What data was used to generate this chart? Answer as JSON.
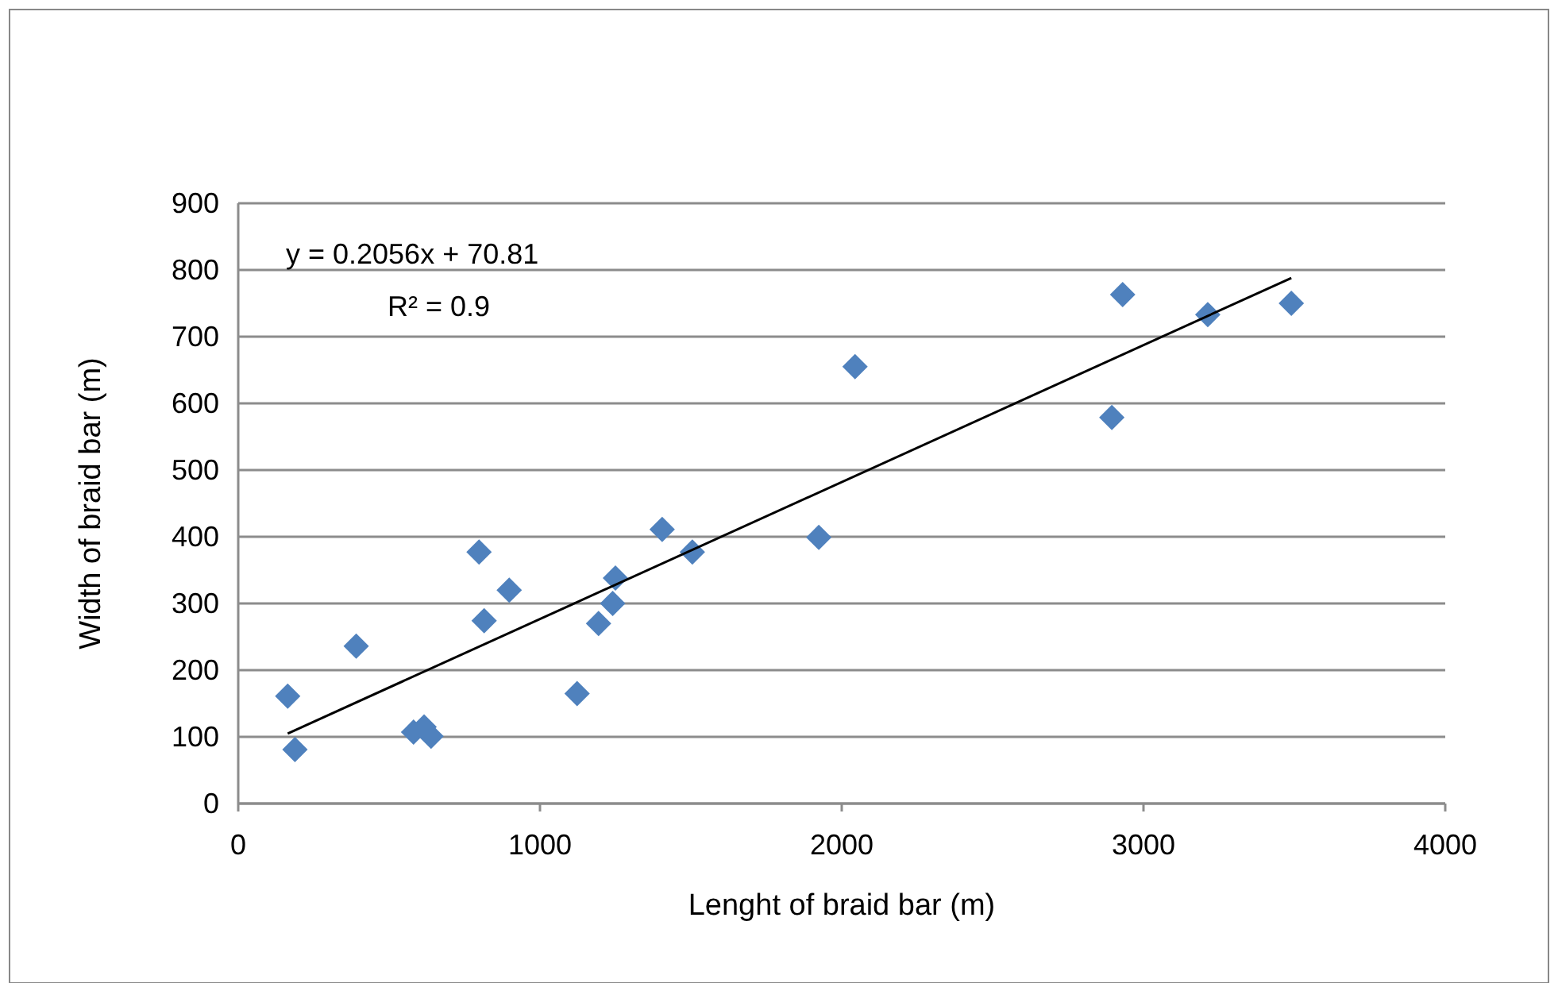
{
  "chart_data": {
    "type": "scatter",
    "xlabel": "Lenght of braid bar (m)",
    "ylabel": "Width of braid bar (m)",
    "xlim": [
      0,
      4000
    ],
    "xticks": [
      0,
      1000,
      2000,
      3000,
      4000
    ],
    "ylim": [
      0,
      900
    ],
    "yticks": [
      0,
      100,
      200,
      300,
      400,
      500,
      600,
      700,
      800,
      900
    ],
    "grid": "y",
    "marker": "diamond",
    "annotations": [
      "y = 0.2056x + 70.81",
      "R² = 0.9"
    ],
    "series": [
      {
        "color": "#4f81bd",
        "x": [
          164,
          188,
          391,
          581,
          616,
          639,
          798,
          815,
          898,
          1123,
          1194,
          1241,
          1250,
          1405,
          1505,
          1924,
          2044,
          2931,
          2895,
          3213,
          3490
        ],
        "values": [
          161,
          81,
          236,
          107,
          115,
          101,
          377,
          274,
          320,
          165,
          270,
          300,
          338,
          411,
          377,
          399,
          655,
          763,
          579,
          733,
          750
        ]
      },
      {
        "type": "line",
        "color": "#000000",
        "marker": "none",
        "x": [
          164,
          3490
        ],
        "values": [
          105,
          788
        ]
      }
    ]
  }
}
